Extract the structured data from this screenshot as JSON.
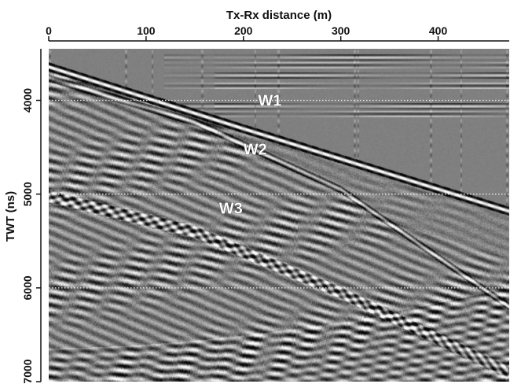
{
  "chart_data": {
    "type": "heatmap",
    "title": "",
    "xlabel": "Tx-Rx distance (m)",
    "ylabel": "TWT (ns)",
    "x_axis_position": "top",
    "xlim": [
      0,
      473
    ],
    "ylim": [
      3450,
      7000
    ],
    "y_inverted": true,
    "x_ticks": [
      0,
      100,
      200,
      300,
      400
    ],
    "y_ticks": [
      4000,
      5000,
      6000,
      7000
    ],
    "colormap": "grayscale",
    "grid": "horizontal dotted lines at 4000, 5000, 6000 ns",
    "annotations": [
      {
        "text": "W1",
        "x": 215,
        "y": 4060
      },
      {
        "text": "W2",
        "x": 200,
        "y": 4580
      },
      {
        "text": "W3",
        "x": 175,
        "y": 5210
      }
    ],
    "events": [
      {
        "label": "W1",
        "points": [
          [
            0,
            3640
          ],
          [
            200,
            4300
          ],
          [
            473,
            5180
          ]
        ]
      },
      {
        "label": "W2",
        "points": [
          [
            0,
            3760
          ],
          [
            150,
            4230
          ],
          [
            300,
            4950
          ],
          [
            473,
            6200
          ]
        ]
      },
      {
        "label": "W3",
        "points": [
          [
            0,
            5020
          ],
          [
            150,
            5400
          ],
          [
            300,
            6050
          ],
          [
            473,
            6900
          ]
        ]
      }
    ],
    "background": {
      "muted_zone_upper_right": true,
      "flat_reflectors_upper_right": [
        3540,
        3620,
        3730,
        3840,
        4060,
        4140
      ],
      "bottom_reflectors_start": 6640,
      "bottom_reflectors_curvature": 650
    }
  }
}
